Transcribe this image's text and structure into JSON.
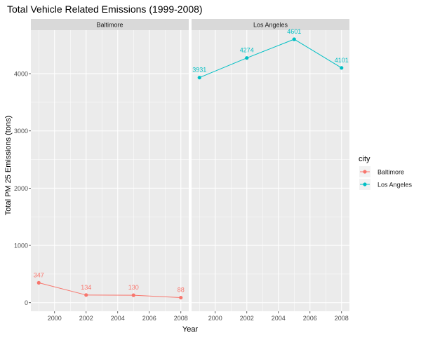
{
  "chart_data": {
    "type": "line",
    "title": "Total Vehicle Related Emissions (1999-2008)",
    "xlabel": "Year",
    "ylabel": "Total PM 25 Emissions (tons)",
    "xlim": [
      1998.5,
      2008.5
    ],
    "ylim": [
      -150,
      4760
    ],
    "x_ticks": [
      2000,
      2002,
      2004,
      2006,
      2008
    ],
    "y_ticks": [
      0,
      1000,
      2000,
      3000,
      4000
    ],
    "grid": true,
    "legend": {
      "title": "city",
      "placement": "right"
    },
    "panels": [
      {
        "name": "Baltimore",
        "color": "#F8766D",
        "x": [
          1999,
          2002,
          2005,
          2008
        ],
        "values": [
          347,
          134,
          130,
          88
        ],
        "labels": [
          "347",
          "134",
          "130",
          "88"
        ]
      },
      {
        "name": "Los Angeles",
        "color": "#00BFC4",
        "x": [
          1999,
          2002,
          2005,
          2008
        ],
        "values": [
          3931,
          4274,
          4601,
          4101
        ],
        "labels": [
          "3931",
          "4274",
          "4601",
          "4101"
        ]
      }
    ]
  }
}
